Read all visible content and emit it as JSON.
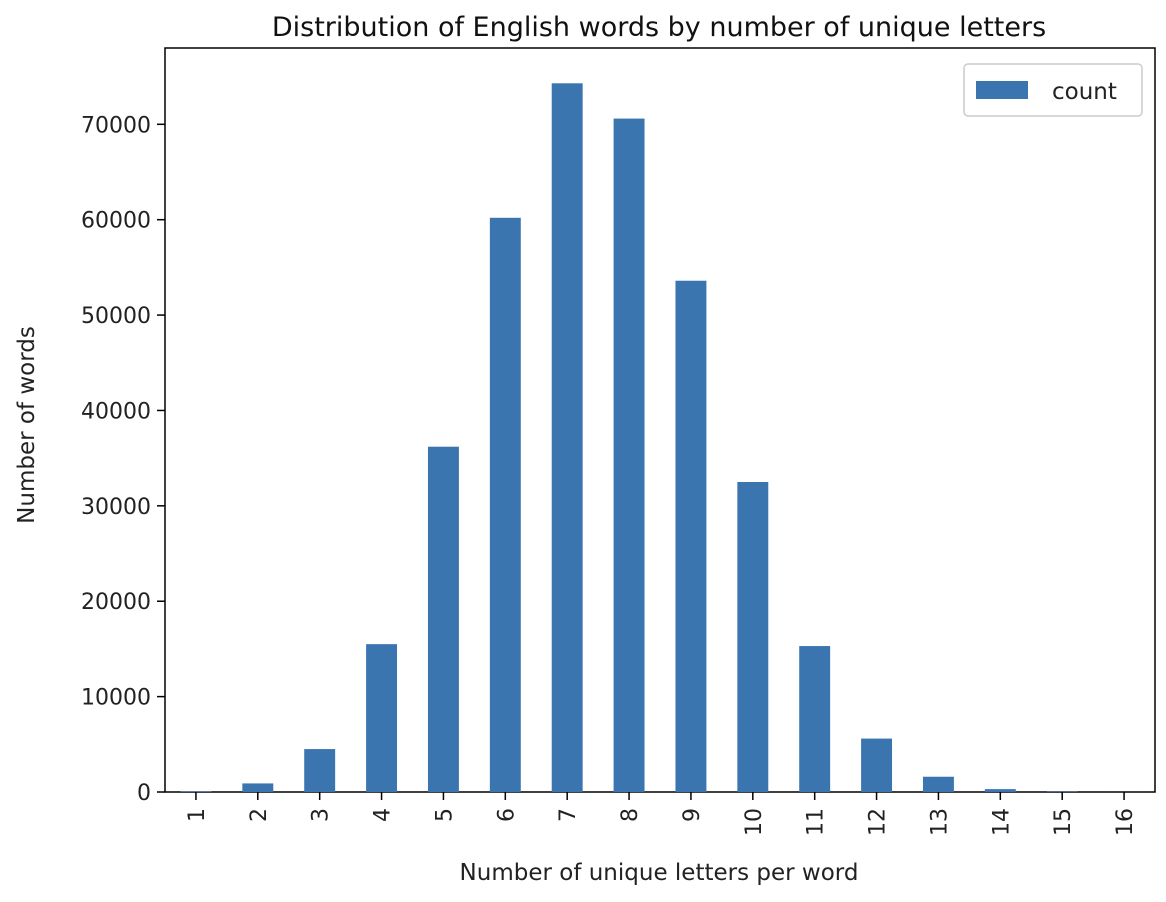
{
  "chart_data": {
    "type": "bar",
    "title": "Distribution of English words by number of unique letters",
    "xlabel": "Number of unique letters per word",
    "ylabel": "Number of words",
    "categories": [
      "1",
      "2",
      "3",
      "4",
      "5",
      "6",
      "7",
      "8",
      "9",
      "10",
      "11",
      "12",
      "13",
      "14",
      "15",
      "16"
    ],
    "series": [
      {
        "name": "count",
        "color": "#3a75b0",
        "values": [
          60,
          900,
          4500,
          15500,
          36200,
          60200,
          74300,
          70600,
          53600,
          32500,
          15300,
          5600,
          1600,
          300,
          40,
          5
        ]
      }
    ],
    "ylim": [
      0,
      78000
    ],
    "yticks": [
      0,
      10000,
      20000,
      30000,
      40000,
      50000,
      60000,
      70000
    ],
    "ytick_labels": [
      "0",
      "10000",
      "20000",
      "30000",
      "40000",
      "50000",
      "60000",
      "70000"
    ],
    "grid": false,
    "legend_position": "top-right",
    "xtick_rotation": "vertical"
  }
}
